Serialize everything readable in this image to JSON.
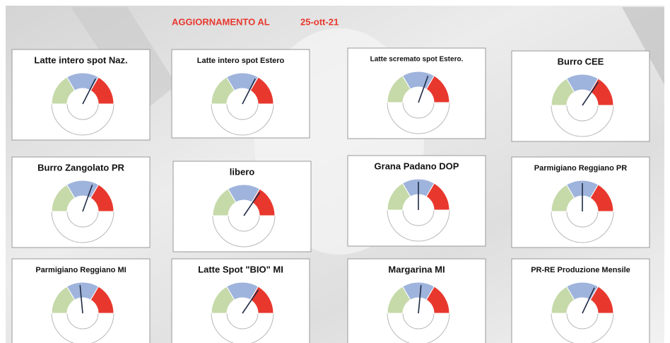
{
  "header": {
    "title": "AGGIORNAMENTO AL",
    "date": "25-ott-21"
  },
  "chart_data": [
    {
      "type": "gauge",
      "title": "Latte intero spot Naz.",
      "value": 65,
      "ylim": [
        0,
        100
      ],
      "bands": [
        {
          "color": "#c6d9a9",
          "from": 0,
          "to": 33
        },
        {
          "color": "#9fb4dc",
          "from": 33,
          "to": 67
        },
        {
          "color": "#e8382e",
          "from": 67,
          "to": 100
        }
      ]
    },
    {
      "type": "gauge",
      "title": "Latte intero spot Estero",
      "value": 65,
      "ylim": [
        0,
        100
      ],
      "bands": [
        {
          "color": "#c6d9a9",
          "from": 0,
          "to": 33
        },
        {
          "color": "#9fb4dc",
          "from": 33,
          "to": 67
        },
        {
          "color": "#e8382e",
          "from": 67,
          "to": 100
        }
      ]
    },
    {
      "type": "gauge",
      "title": "Latte scremato spot Estero.",
      "value": 61,
      "ylim": [
        0,
        100
      ],
      "bands": [
        {
          "color": "#c6d9a9",
          "from": 0,
          "to": 33
        },
        {
          "color": "#9fb4dc",
          "from": 33,
          "to": 67
        },
        {
          "color": "#e8382e",
          "from": 67,
          "to": 100
        }
      ]
    },
    {
      "type": "gauge",
      "title": "Burro CEE",
      "value": 69,
      "ylim": [
        0,
        100
      ],
      "bands": [
        {
          "color": "#c6d9a9",
          "from": 0,
          "to": 33
        },
        {
          "color": "#9fb4dc",
          "from": 33,
          "to": 67
        },
        {
          "color": "#e8382e",
          "from": 67,
          "to": 100
        }
      ]
    },
    {
      "type": "gauge",
      "title": "Burro Zangolato PR",
      "value": 61,
      "ylim": [
        0,
        100
      ],
      "bands": [
        {
          "color": "#c6d9a9",
          "from": 0,
          "to": 33
        },
        {
          "color": "#9fb4dc",
          "from": 33,
          "to": 67
        },
        {
          "color": "#e8382e",
          "from": 67,
          "to": 100
        }
      ]
    },
    {
      "type": "gauge",
      "title": "libero",
      "value": 69,
      "ylim": [
        0,
        100
      ],
      "bands": [
        {
          "color": "#c6d9a9",
          "from": 0,
          "to": 33
        },
        {
          "color": "#9fb4dc",
          "from": 33,
          "to": 67
        },
        {
          "color": "#e8382e",
          "from": 67,
          "to": 100
        }
      ]
    },
    {
      "type": "gauge",
      "title": "Grana Padano DOP",
      "value": 50,
      "ylim": [
        0,
        100
      ],
      "bands": [
        {
          "color": "#c6d9a9",
          "from": 0,
          "to": 33
        },
        {
          "color": "#9fb4dc",
          "from": 33,
          "to": 67
        },
        {
          "color": "#e8382e",
          "from": 67,
          "to": 100
        }
      ]
    },
    {
      "type": "gauge",
      "title": "Parmigiano Reggiano PR",
      "value": 50,
      "ylim": [
        0,
        100
      ],
      "bands": [
        {
          "color": "#c6d9a9",
          "from": 0,
          "to": 33
        },
        {
          "color": "#9fb4dc",
          "from": 33,
          "to": 67
        },
        {
          "color": "#e8382e",
          "from": 67,
          "to": 100
        }
      ]
    },
    {
      "type": "gauge",
      "title": "Parmigiano Reggiano MI",
      "value": 47,
      "ylim": [
        0,
        100
      ],
      "bands": [
        {
          "color": "#c6d9a9",
          "from": 0,
          "to": 33
        },
        {
          "color": "#9fb4dc",
          "from": 33,
          "to": 67
        },
        {
          "color": "#e8382e",
          "from": 67,
          "to": 100
        }
      ]
    },
    {
      "type": "gauge",
      "title": "Latte Spot \"BIO\" MI",
      "value": 69,
      "ylim": [
        0,
        100
      ],
      "bands": [
        {
          "color": "#c6d9a9",
          "from": 0,
          "to": 33
        },
        {
          "color": "#9fb4dc",
          "from": 33,
          "to": 67
        },
        {
          "color": "#e8382e",
          "from": 67,
          "to": 100
        }
      ]
    },
    {
      "type": "gauge",
      "title": "Margarina MI",
      "value": 53,
      "ylim": [
        0,
        100
      ],
      "bands": [
        {
          "color": "#c6d9a9",
          "from": 0,
          "to": 33
        },
        {
          "color": "#9fb4dc",
          "from": 33,
          "to": 67
        },
        {
          "color": "#e8382e",
          "from": 67,
          "to": 100
        }
      ]
    },
    {
      "type": "gauge",
      "title": "PR-RE Produzione Mensile",
      "value": 64,
      "ylim": [
        0,
        100
      ],
      "bands": [
        {
          "color": "#c6d9a9",
          "from": 0,
          "to": 33
        },
        {
          "color": "#9fb4dc",
          "from": 33,
          "to": 67
        },
        {
          "color": "#e8382e",
          "from": 67,
          "to": 100
        }
      ]
    }
  ]
}
